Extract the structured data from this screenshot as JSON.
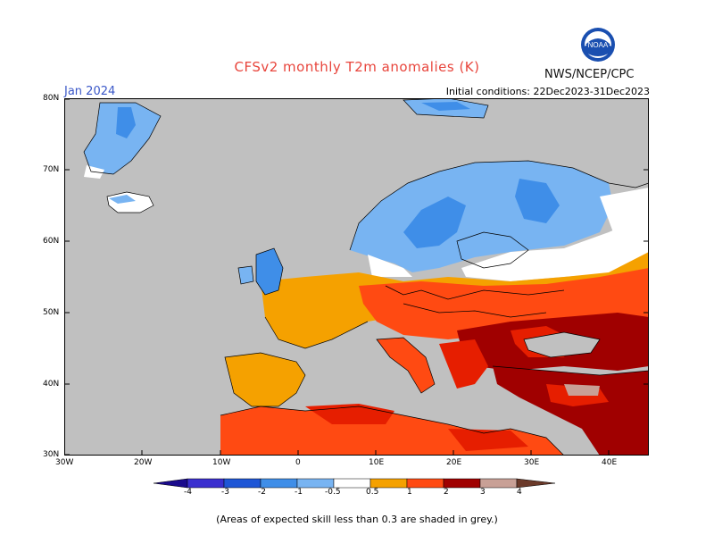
{
  "header": {
    "title": "CFSv2 monthly T2m anomalies (K)",
    "month": "Jan 2024",
    "initial_conditions": "Initial conditions: 22Dec2023-31Dec2023",
    "agency": "NWS/NCEP/CPC",
    "logo_text": "NOAA"
  },
  "axes": {
    "lat_labels": [
      "80N",
      "70N",
      "60N",
      "50N",
      "40N",
      "30N"
    ],
    "lon_labels": [
      "30W",
      "20W",
      "10W",
      "0",
      "10E",
      "20E",
      "30E",
      "40E"
    ]
  },
  "legend": {
    "labels": [
      "-4",
      "-3",
      "-2",
      "-1",
      "-0.5",
      "0.5",
      "1",
      "2",
      "3",
      "4"
    ],
    "colors": {
      "below_-4": "#1a0b8c",
      "-4_-3": "#3a2fcf",
      "-3_-2": "#1e56d6",
      "-2_-1": "#3f8ee8",
      "-1_-0.5": "#78b4f2",
      "-0.5_0.5": "#ffffff",
      "0.5_1": "#f5a100",
      "1_2": "#ff4a12",
      "2_3": "#e61e00",
      "3_4": "#a00000",
      "above_4": "#c8a096",
      "skill_mask": "#c0c0c0"
    }
  },
  "footnote": "(Areas of expected skill less than 0.3 are shaded in grey.)"
}
